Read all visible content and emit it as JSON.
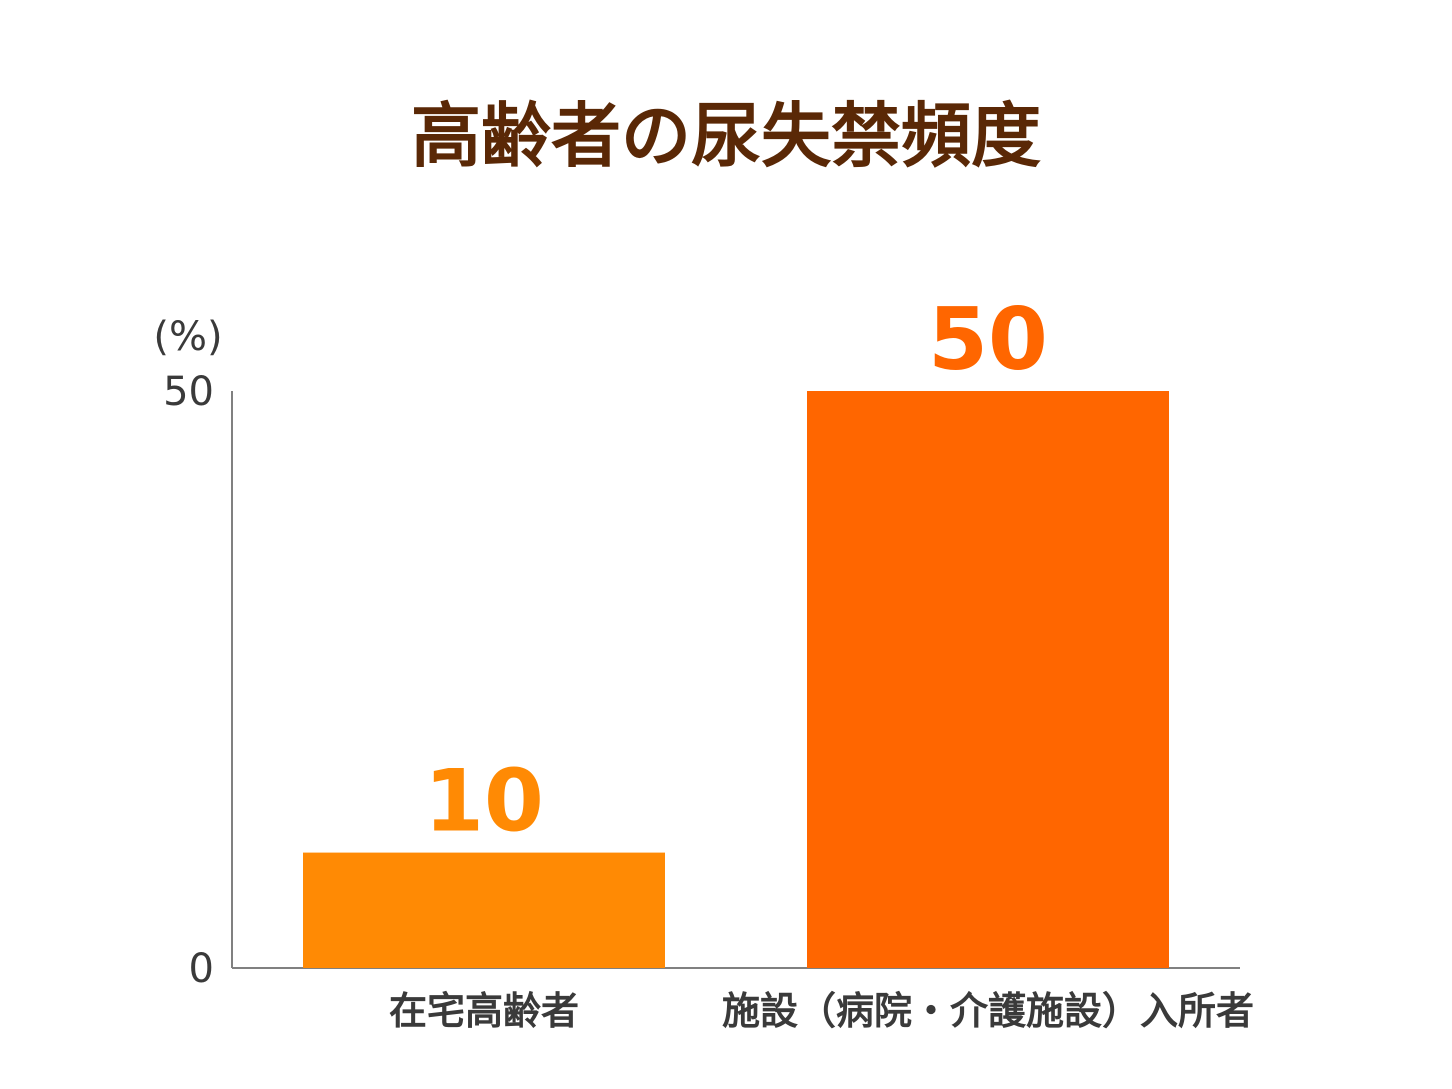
{
  "chart_data": {
    "type": "bar",
    "title": "高齢者の尿失禁頻度",
    "unit_label": "(%)",
    "categories": [
      "在宅高齢者",
      "施設（病院・介護施設）入所者"
    ],
    "values": [
      10,
      50
    ],
    "value_labels": [
      "10",
      "50"
    ],
    "yticks": [
      "0",
      "50"
    ],
    "ylim": [
      0,
      50
    ],
    "grid": false,
    "legend": "none",
    "colors": {
      "title": "#5a2806",
      "bars": [
        "#ff8a04",
        "#ff6600"
      ],
      "value_labels": [
        "#ff8a04",
        "#ff6600"
      ],
      "axis": "#808080",
      "text": "#3a3a3a"
    }
  }
}
